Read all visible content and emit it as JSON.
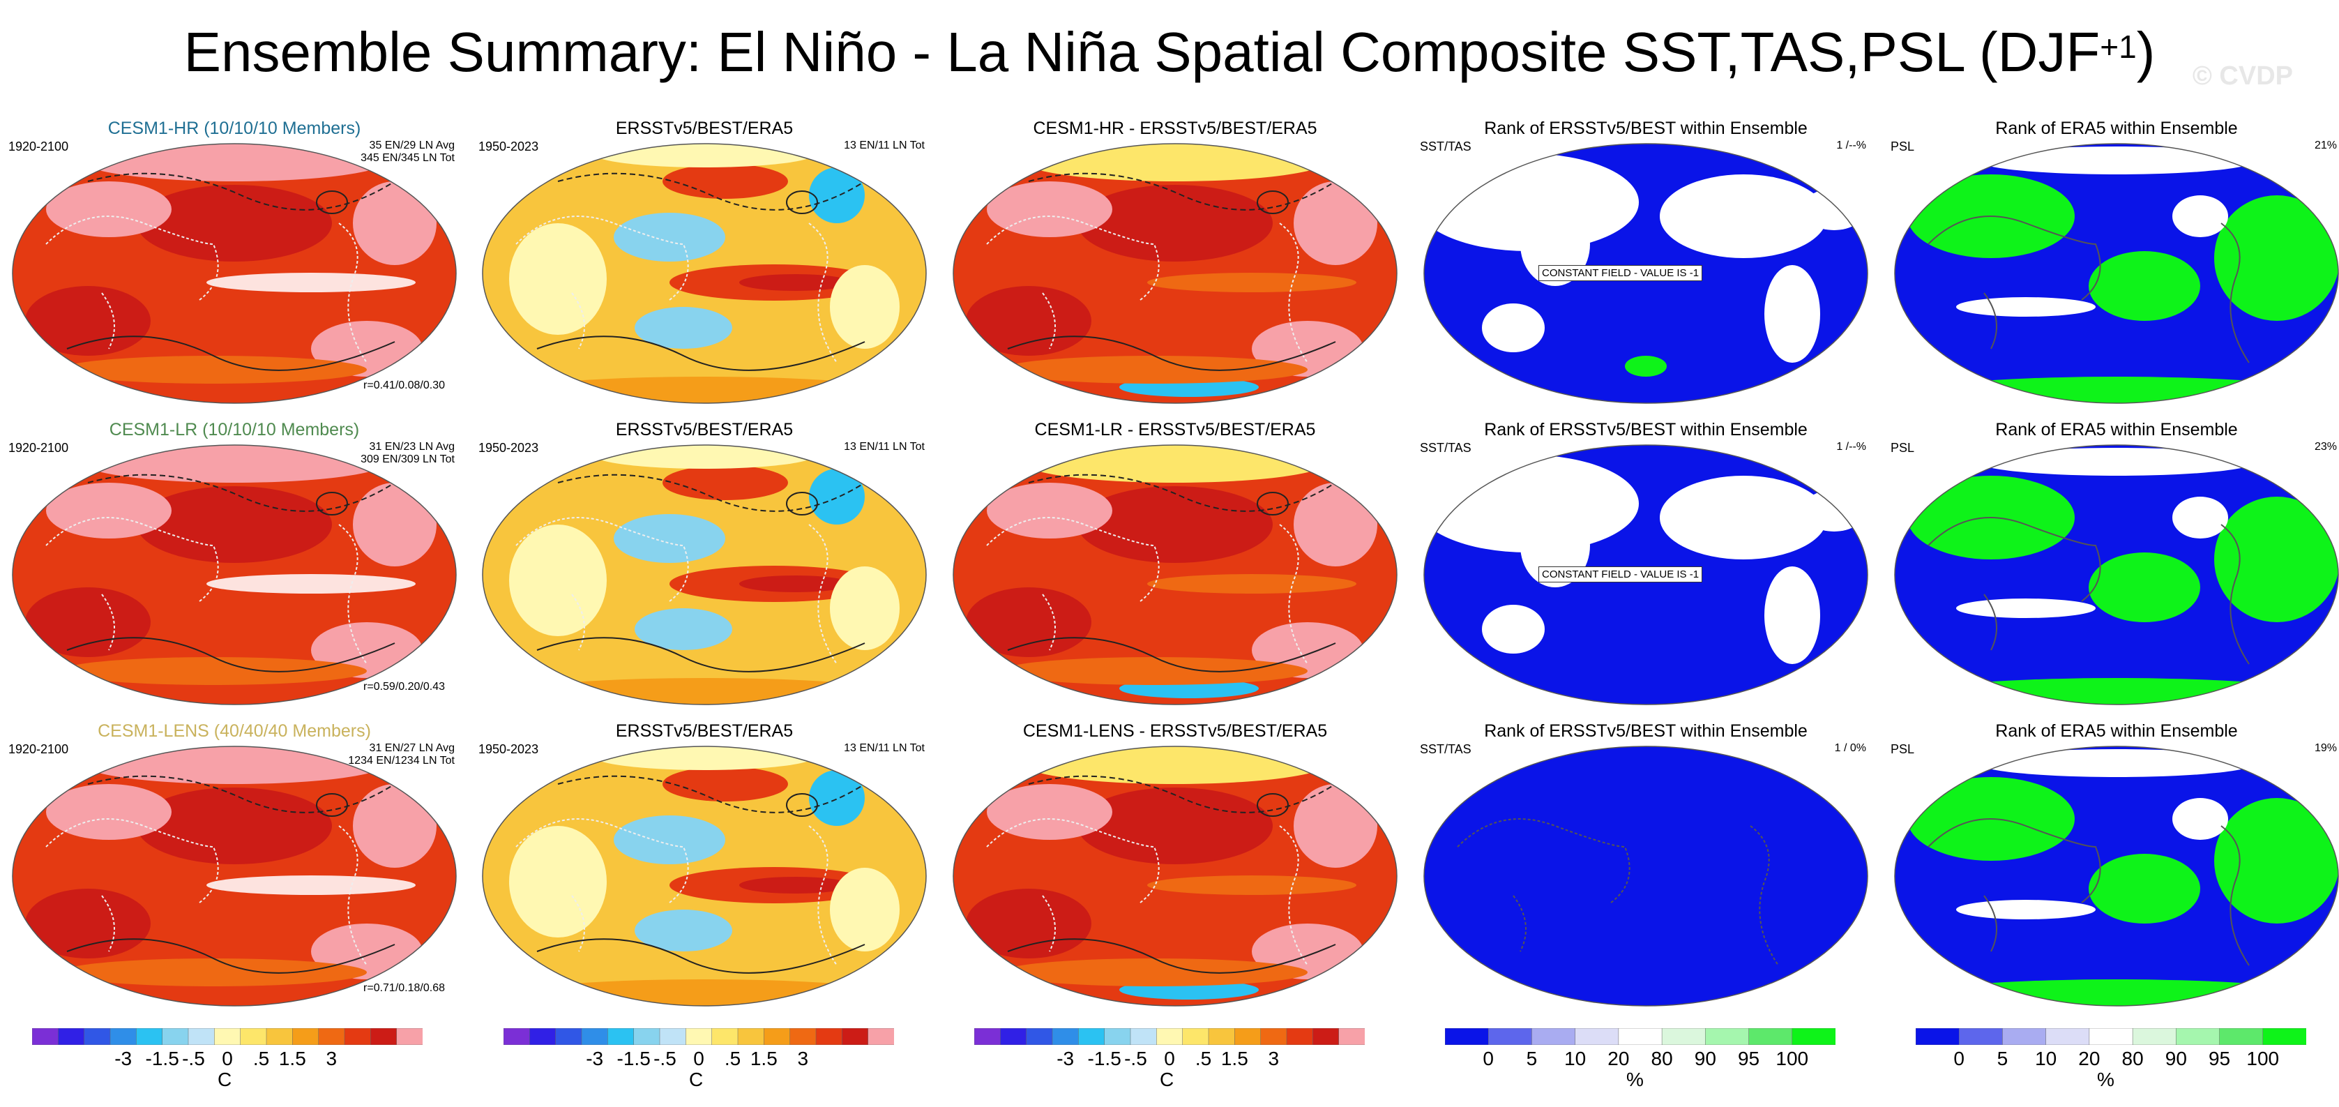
{
  "title": "Ensemble Summary: El Niño - La Niña Spatial Composite SST,TAS,PSL (DJF",
  "title_sup": "+1",
  "title_close": ")",
  "watermark": "© CVDP",
  "colors": {
    "div": [
      "#7b2fd6",
      "#3020e6",
      "#3057e6",
      "#2f8ee8",
      "#2bc2f2",
      "#88d3ee",
      "#c0e3f7",
      "#fff8b2",
      "#fde66a",
      "#f8c53d",
      "#f59d19",
      "#ef6913",
      "#e43a12",
      "#cc1c16",
      "#f7a1a8"
    ],
    "rank": [
      "#0a14e8",
      "#5d66ec",
      "#a9acf1",
      "#dcddf7",
      "#ffffff",
      "#dbf7dd",
      "#a5f6ae",
      "#5de86b",
      "#0ef319"
    ],
    "white_contour": "#ffffff"
  },
  "rows": [
    {
      "model_label": "CESM1-HR (10/10/10 Members)",
      "model_color": "#1f6f93",
      "period": "1920-2100",
      "model_notes": [
        "35 EN/29 LN Avg",
        "345 EN/345 LN Tot"
      ],
      "corr": "r=0.41/0.08/0.30",
      "obs_title": "ERSSTv5/BEST/ERA5",
      "obs_period": "1950-2023",
      "obs_note": "13 EN/11 LN Tot",
      "diff_title": "CESM1-HR - ERSSTv5/BEST/ERA5",
      "rank1_title": "Rank of ERSSTv5/BEST within Ensemble",
      "rank1_left": "SST/TAS",
      "rank1_right": "1 /--%",
      "rank1_const": "CONSTANT FIELD - VALUE IS -1",
      "rank2_title": "Rank of ERA5 within Ensemble",
      "rank2_left": "PSL",
      "rank2_right": "21%"
    },
    {
      "model_label": "CESM1-LR (10/10/10 Members)",
      "model_color": "#4f8a4f",
      "period": "1920-2100",
      "model_notes": [
        "31 EN/23 LN Avg",
        "309 EN/309 LN Tot"
      ],
      "corr": "r=0.59/0.20/0.43",
      "obs_title": "ERSSTv5/BEST/ERA5",
      "obs_period": "1950-2023",
      "obs_note": "13 EN/11 LN Tot",
      "diff_title": "CESM1-LR - ERSSTv5/BEST/ERA5",
      "rank1_title": "Rank of ERSSTv5/BEST within Ensemble",
      "rank1_left": "SST/TAS",
      "rank1_right": "1 /--%",
      "rank1_const": "CONSTANT FIELD - VALUE IS -1",
      "rank2_title": "Rank of ERA5 within Ensemble",
      "rank2_left": "PSL",
      "rank2_right": "23%"
    },
    {
      "model_label": "CESM1-LENS (40/40/40 Members)",
      "model_color": "#c9b25c",
      "period": "1920-2100",
      "model_notes": [
        "31 EN/27 LN Avg",
        "1234 EN/1234 LN Tot"
      ],
      "corr": "r=0.71/0.18/0.68",
      "obs_title": "ERSSTv5/BEST/ERA5",
      "obs_period": "1950-2023",
      "obs_note": "13 EN/11 LN Tot",
      "diff_title": "CESM1-LENS - ERSSTv5/BEST/ERA5",
      "rank1_title": "Rank of ERSSTv5/BEST within Ensemble",
      "rank1_left": "SST/TAS",
      "rank1_right": "1 /  0%",
      "rank1_const": "",
      "rank2_title": "Rank of ERA5 within Ensemble",
      "rank2_left": "PSL",
      "rank2_right": "19%"
    }
  ],
  "colorbars": {
    "div_labels": [
      "-3",
      "-1.5",
      "-.5",
      "0",
      ".5",
      "1.5",
      "3"
    ],
    "div_unit": "C",
    "rank_labels": [
      "0",
      "5",
      "10",
      "20",
      "80",
      "90",
      "95",
      "100"
    ],
    "rank_unit": "%"
  }
}
